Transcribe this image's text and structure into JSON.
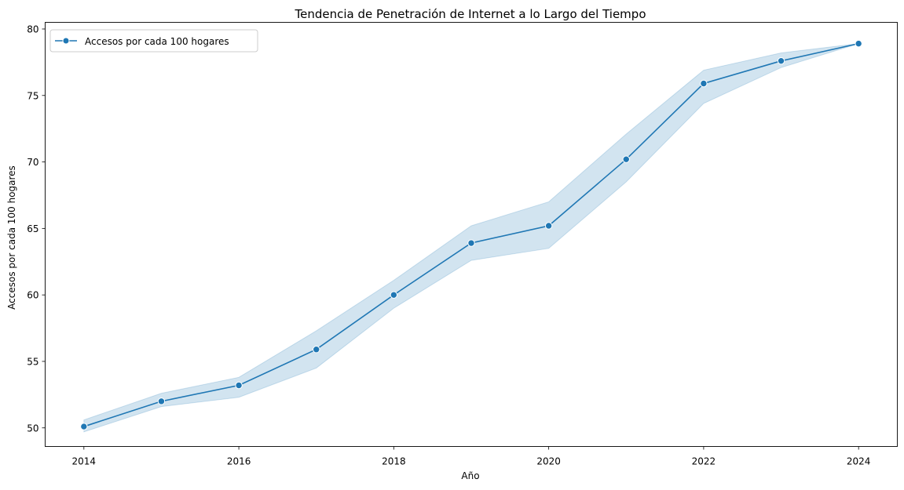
{
  "chart_data": {
    "type": "line",
    "title": "Tendencia de Penetración de Internet a lo Largo del Tiempo",
    "xlabel": "Año",
    "ylabel": "Accesos por cada 100 hogares",
    "xlim": [
      2013.5,
      2024.5
    ],
    "ylim": [
      48.6,
      80.5
    ],
    "x_ticks": [
      2014,
      2016,
      2018,
      2020,
      2022,
      2024
    ],
    "y_ticks": [
      50,
      55,
      60,
      65,
      70,
      75,
      80
    ],
    "legend_position": "top-left",
    "grid": false,
    "series": [
      {
        "name": "Accesos por cada 100 hogares",
        "color": "#1f77b4",
        "marker": "circle",
        "x": [
          2014,
          2015,
          2016,
          2017,
          2018,
          2019,
          2020,
          2021,
          2022,
          2023,
          2024
        ],
        "y": [
          50.1,
          52.0,
          53.2,
          55.9,
          60.0,
          63.9,
          65.2,
          70.2,
          75.9,
          77.6,
          78.9
        ],
        "ci_lower": [
          49.7,
          51.6,
          52.3,
          54.5,
          59.0,
          62.6,
          63.5,
          68.5,
          74.4,
          77.1,
          78.9
        ],
        "ci_upper": [
          50.6,
          52.6,
          53.8,
          57.3,
          61.1,
          65.2,
          67.0,
          72.1,
          76.9,
          78.2,
          78.9
        ]
      }
    ]
  }
}
